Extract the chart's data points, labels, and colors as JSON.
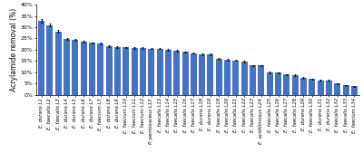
{
  "categories": [
    "E. durans L1",
    "E. faecalis L2",
    "E. faecalis L3",
    "E. durans L4",
    "E. durans L5",
    "E. durans L6",
    "E. durans L7",
    "E. faecium L3",
    "E. durans L8",
    "E. durans L9",
    "E. faecium L10",
    "E. faecium L11",
    "E. faecium L12",
    "P. pentosaceus L13",
    "E. faecalis L13",
    "E. faecalis L14",
    "E. faecalis L15",
    "E. faecalis L16",
    "E. faecalis L17",
    "E. durans L18",
    "E. durans L19",
    "E. faecalis L19",
    "E. faecalis L20",
    "E. faecalis L21",
    "E. faecalis L22",
    "E. faecalis L23",
    "E. acidilimosus L24",
    "E. faecalis L25",
    "E. faecalis L26",
    "E. faecalis L27",
    "E. faecalis L28",
    "E. durans L29",
    "E. faecalis L30",
    "E. durans L31",
    "E. durans L32",
    "E. faecalis L32",
    "E. faecalis L33",
    "E. faecium L34"
  ],
  "values": [
    33.0,
    31.0,
    28.0,
    24.8,
    24.5,
    23.5,
    23.0,
    22.8,
    21.5,
    21.2,
    21.0,
    20.8,
    20.7,
    20.5,
    20.5,
    20.0,
    19.5,
    19.0,
    18.5,
    18.0,
    17.8,
    16.0,
    15.5,
    15.3,
    14.8,
    13.0,
    13.0,
    10.0,
    9.8,
    9.0,
    8.8,
    7.5,
    7.0,
    6.5,
    6.5,
    5.0,
    4.2,
    3.8
  ],
  "errors": [
    0.8,
    0.5,
    0.6,
    0.4,
    0.4,
    0.3,
    0.3,
    0.3,
    0.3,
    0.3,
    0.3,
    0.3,
    0.3,
    0.3,
    0.3,
    0.3,
    0.3,
    0.3,
    0.3,
    0.3,
    0.4,
    0.3,
    0.3,
    0.3,
    0.3,
    0.3,
    0.3,
    0.3,
    0.3,
    0.3,
    0.3,
    0.3,
    0.3,
    0.3,
    0.3,
    0.3,
    0.3,
    0.3
  ],
  "bar_color": "#4472C4",
  "error_color": "#000000",
  "ylabel": "Acrylamide removal (%)",
  "ylim": [
    0,
    40
  ],
  "yticks": [
    0,
    5,
    10,
    15,
    20,
    25,
    30,
    35,
    40
  ],
  "ytick_labels": [
    "0%",
    "5%",
    "10%",
    "15%",
    "20%",
    "25%",
    "30%",
    "35%",
    "40%"
  ],
  "bg_color": "#ffffff",
  "label_fontsize": 3.8,
  "tick_fontsize": 4.5,
  "ylabel_fontsize": 5.5
}
